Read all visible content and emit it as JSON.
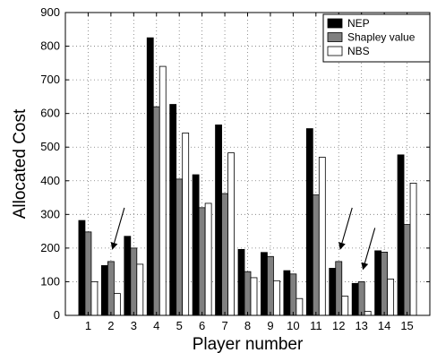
{
  "chart_data": {
    "type": "bar",
    "xlabel": "Player number",
    "ylabel": "Allocated Cost",
    "ylim": [
      0,
      900
    ],
    "yticks": [
      0,
      100,
      200,
      300,
      400,
      500,
      600,
      700,
      800,
      900
    ],
    "grid": true,
    "legend_position": "top-right",
    "categories": [
      "1",
      "2",
      "3",
      "4",
      "5",
      "6",
      "7",
      "8",
      "9",
      "10",
      "11",
      "12",
      "13",
      "14",
      "15"
    ],
    "series": [
      {
        "name": "NEP",
        "color": "#000000",
        "values": [
          282,
          148,
          235,
          825,
          627,
          418,
          566,
          196,
          187,
          133,
          555,
          140,
          95,
          192,
          477
        ]
      },
      {
        "name": "Shapley value",
        "color": "#808080",
        "values": [
          248,
          160,
          200,
          620,
          405,
          320,
          362,
          130,
          175,
          123,
          358,
          160,
          100,
          188,
          270
        ]
      },
      {
        "name": "NBS",
        "color": "#ffffff",
        "values": [
          100,
          65,
          152,
          740,
          542,
          333,
          483,
          112,
          103,
          50,
          470,
          57,
          12,
          108,
          393
        ]
      }
    ],
    "annotations": [
      {
        "type": "arrow",
        "target_category": "2"
      },
      {
        "type": "arrow",
        "target_category": "12"
      },
      {
        "type": "arrow",
        "target_category": "13"
      }
    ]
  }
}
